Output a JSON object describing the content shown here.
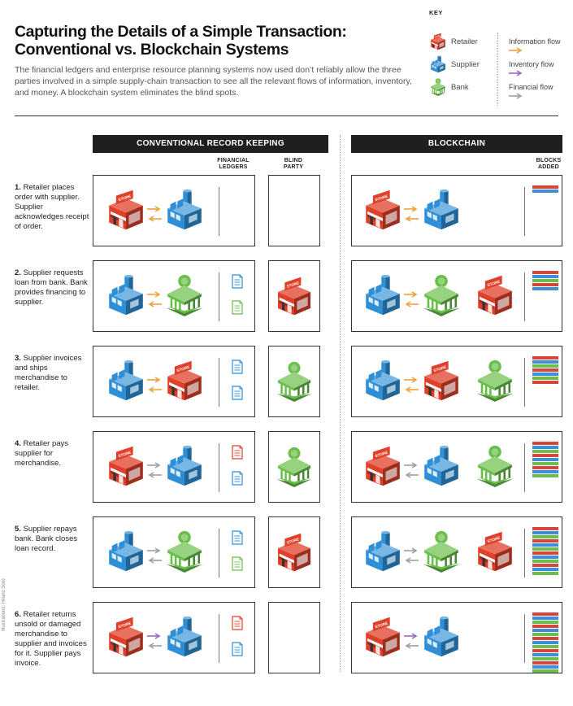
{
  "title": "Capturing the Details of a Simple Transaction: Conventional vs. Blockchain Systems",
  "intro": "The financial ledgers and enterprise resource planning systems now used don’t reliably allow the three parties involved in a simple supply-chain transaction to see all the relevant flows of information, inventory, and money. A blockchain system eliminates the blind spots.",
  "key": {
    "heading": "KEY",
    "parties": [
      {
        "label": "Retailer",
        "icon": "store-icon",
        "color": "#e0402a"
      },
      {
        "label": "Supplier",
        "icon": "factory-icon",
        "color": "#2f8fd6"
      },
      {
        "label": "Bank",
        "icon": "bank-icon",
        "color": "#6abf4b"
      }
    ],
    "flows": [
      {
        "label": "Information flow",
        "color": "#f0a040"
      },
      {
        "label": "Inventory flow",
        "color": "#9b6ac0"
      },
      {
        "label": "Financial flow",
        "color": "#9aa0a6"
      }
    ]
  },
  "sections": {
    "conventional": "CONVENTIONAL RECORD KEEPING",
    "blockchain": "BLOCKCHAIN"
  },
  "columns": {
    "financial_ledgers": [
      "FINANCIAL",
      "LEDGERS"
    ],
    "blind_party": [
      "BLIND",
      "PARTY"
    ],
    "blocks_added": [
      "BLOCKS",
      "ADDED"
    ]
  },
  "store_sign": "STORE",
  "rows": [
    {
      "num": "1.",
      "text": "Retailer places order with supplier. Supplier acknowledges receipt of order."
    },
    {
      "num": "2.",
      "text": "Supplier requests loan from bank. Bank provides financing to supplier."
    },
    {
      "num": "3.",
      "text": "Supplier invoices and ships merchandise to retailer."
    },
    {
      "num": "4.",
      "text": "Retailer pays supplier for merchandise."
    },
    {
      "num": "5.",
      "text": "Supplier repays bank. Bank closes loan record."
    },
    {
      "num": "6.",
      "text": "Retailer returns unsold or damaged merchandise to supplier and invoices for it. Supplier pays invoice."
    }
  ],
  "credit": "Illustrations: Hilario Soto",
  "colors": {
    "retailer": "#e0402a",
    "supplier": "#2f8fd6",
    "bank": "#6abf4b",
    "info": "#f0a040",
    "inventory": "#9b6ac0",
    "financial": "#9aa0a6"
  }
}
